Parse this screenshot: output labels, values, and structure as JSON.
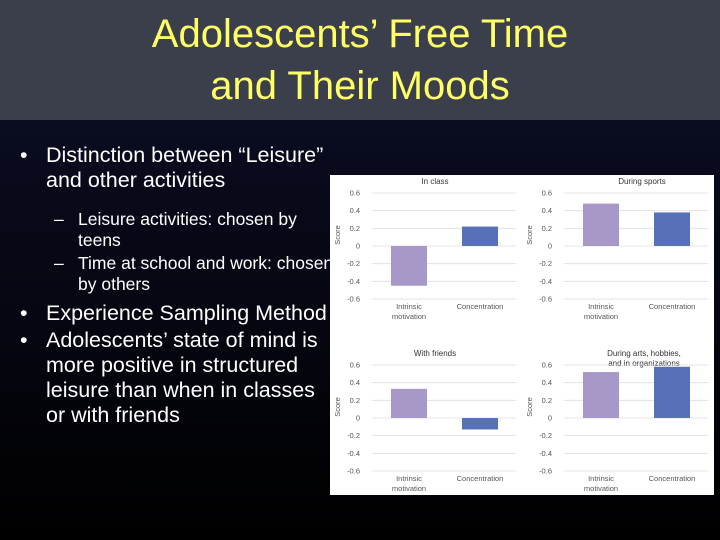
{
  "slide": {
    "title_line1": "Adolescents’ Free Time",
    "title_line2": "and Their Moods",
    "bullets": [
      "Distinction between “Leisure” and other activities",
      "Experience Sampling Method",
      "Adolescents’ state of mind is more positive in structured leisure than when in classes or with friends"
    ],
    "sub_bullets": [
      "Leisure activities:  chosen by teens",
      "Time at school and work:  chosen by others"
    ],
    "dash": "–"
  },
  "colors": {
    "title_bg": "#3a3f4b",
    "title_text": "#ffff66",
    "intrinsic_bar": "#a898c8",
    "concentration_bar": "#5870b8",
    "gridline": "#dddddd"
  },
  "chart_data": [
    {
      "type": "bar",
      "title": "In class",
      "categories": [
        "Intrinsic motivation",
        "Concentration"
      ],
      "values": [
        -0.45,
        0.22
      ],
      "ylabel": "Score",
      "ylim": [
        -0.6,
        0.6
      ],
      "yticks": [
        "0.6",
        "0.4",
        "0.2",
        "0",
        "-0.2",
        "-0.4",
        "-0.6"
      ]
    },
    {
      "type": "bar",
      "title": "During sports",
      "categories": [
        "Intrinsic motivation",
        "Concentration"
      ],
      "values": [
        0.48,
        0.38
      ],
      "ylabel": "Score",
      "ylim": [
        -0.6,
        0.6
      ],
      "yticks": [
        "0.6",
        "0.4",
        "0.2",
        "0",
        "-0.2",
        "-0.4",
        "-0.6"
      ]
    },
    {
      "type": "bar",
      "title": "With friends",
      "categories": [
        "Intrinsic motivation",
        "Concentration"
      ],
      "values": [
        0.33,
        -0.13
      ],
      "ylabel": "Score",
      "ylim": [
        -0.6,
        0.6
      ],
      "yticks": [
        "0.6",
        "0.4",
        "0.2",
        "0",
        "-0.2",
        "-0.4",
        "-0.6"
      ]
    },
    {
      "type": "bar",
      "title": "During arts, hobbies, and in organizations",
      "categories": [
        "Intrinsic motivation",
        "Concentration"
      ],
      "values": [
        0.52,
        0.58
      ],
      "ylabel": "Score",
      "ylim": [
        -0.6,
        0.6
      ],
      "yticks": [
        "0.6",
        "0.4",
        "0.2",
        "0",
        "-0.2",
        "-0.4",
        "-0.6"
      ]
    }
  ]
}
